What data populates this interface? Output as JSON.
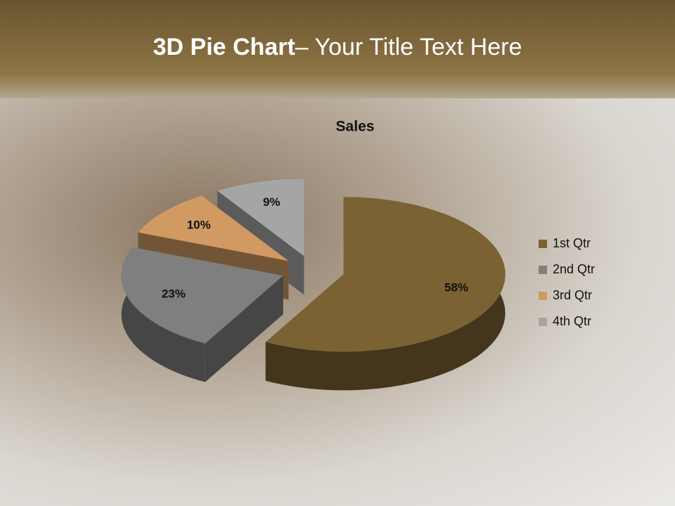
{
  "slide": {
    "title_bold": "3D Pie Chart",
    "title_rest": "– Your Title Text Here"
  },
  "chart_data": {
    "type": "pie",
    "title": "Sales",
    "categories": [
      "1st Qtr",
      "2nd Qtr",
      "3rd Qtr",
      "4th Qtr"
    ],
    "values": [
      58,
      23,
      10,
      9
    ],
    "value_labels": [
      "58%",
      "23%",
      "10%",
      "9%"
    ],
    "colors": [
      "#7a6232",
      "#7f7f7f",
      "#d09a62",
      "#a5a5a5"
    ],
    "legend": "right"
  }
}
